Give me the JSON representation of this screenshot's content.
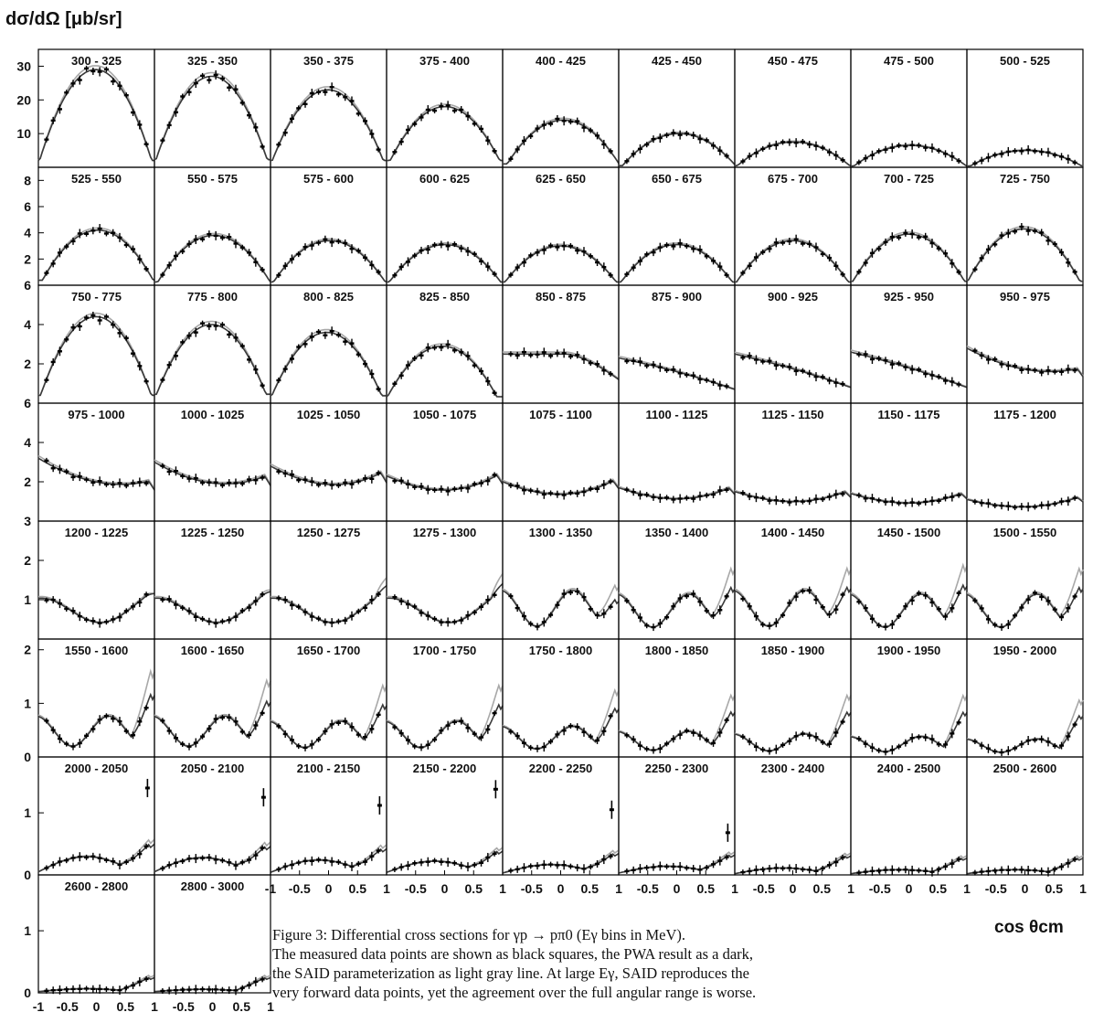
{
  "figure": {
    "ylabel": "dσ/dΩ [μb/sr]",
    "xlabel": "cos θcm",
    "caption": [
      "Figure 3: Differential cross sections for γp → pπ0 (Eγ bins in MeV).",
      "The measured data points are shown as black squares, the PWA result as a dark,",
      "the SAID parameterization as light gray line. At large Eγ, SAID reproduces the",
      "very forward data points, yet the agreement over the full angular range is worse."
    ]
  },
  "colors": {
    "data": "#000000",
    "pwa": "#3a3a3a",
    "said": "#a8a8a8"
  },
  "chart_data": {
    "type": "scatter",
    "x_ticks": [
      "-1",
      "-0.5",
      "0",
      "0.5",
      "1"
    ],
    "xlim": [
      -1,
      1
    ],
    "rows": [
      {
        "ylim": [
          0,
          35
        ],
        "yticks": [
          10,
          20,
          30
        ]
      },
      {
        "ylim": [
          0,
          9
        ],
        "yticks": [
          2,
          4,
          6,
          8
        ]
      },
      {
        "ylim": [
          0,
          6
        ],
        "yticks": [
          2,
          4,
          6
        ]
      },
      {
        "ylim": [
          0,
          6
        ],
        "yticks": [
          2,
          4,
          6
        ]
      },
      {
        "ylim": [
          0,
          3
        ],
        "yticks": [
          1,
          2,
          3
        ]
      },
      {
        "ylim": [
          0,
          2.2
        ],
        "yticks": [
          0,
          1,
          2
        ]
      },
      {
        "ylim": [
          0,
          1.9
        ],
        "yticks": [
          0,
          1
        ]
      },
      {
        "ylim": [
          0,
          1.9
        ],
        "yticks": [
          0,
          1
        ]
      }
    ],
    "panels": [
      {
        "label": "300 - 325",
        "peak": 29,
        "shape": "dome",
        "edge": [
          12,
          8
        ]
      },
      {
        "label": "325 - 350",
        "peak": 27,
        "shape": "dome",
        "edge": [
          13,
          9
        ]
      },
      {
        "label": "350 - 375",
        "peak": 23,
        "shape": "dome",
        "edge": [
          11,
          8
        ]
      },
      {
        "label": "375 - 400",
        "peak": 18,
        "shape": "dome",
        "edge": [
          8,
          9
        ]
      },
      {
        "label": "400 - 425",
        "peak": 14,
        "shape": "dome",
        "edge": [
          4,
          10
        ]
      },
      {
        "label": "425 - 450",
        "peak": 10,
        "shape": "dome",
        "edge": [
          2,
          6
        ]
      },
      {
        "label": "450 - 475",
        "peak": 7.5,
        "shape": "dome",
        "edge": [
          2,
          3
        ]
      },
      {
        "label": "475 - 500",
        "peak": 6.5,
        "shape": "dome",
        "edge": [
          1.5,
          3
        ]
      },
      {
        "label": "500 - 525",
        "peak": 5,
        "shape": "dome",
        "edge": [
          1.5,
          2.5
        ]
      },
      {
        "label": "525 - 550",
        "peak": 4.2,
        "shape": "dome",
        "edge": [
          1.5,
          2.5
        ]
      },
      {
        "label": "550 - 575",
        "peak": 3.8,
        "shape": "dome",
        "edge": [
          1,
          2
        ]
      },
      {
        "label": "575 - 600",
        "peak": 3.4,
        "shape": "dome",
        "edge": [
          1,
          1.5
        ]
      },
      {
        "label": "600 - 625",
        "peak": 3.1,
        "shape": "dome",
        "edge": [
          1,
          1.2
        ]
      },
      {
        "label": "625 - 650",
        "peak": 3,
        "shape": "dome",
        "edge": [
          1,
          1
        ]
      },
      {
        "label": "650 - 675",
        "peak": 3.1,
        "shape": "dome",
        "edge": [
          1,
          1
        ]
      },
      {
        "label": "675 - 700",
        "peak": 3.4,
        "shape": "dome",
        "edge": [
          1.2,
          1
        ]
      },
      {
        "label": "700 - 725",
        "peak": 3.9,
        "shape": "dome",
        "edge": [
          1.3,
          1.2
        ]
      },
      {
        "label": "725 - 750",
        "peak": 4.3,
        "shape": "dome",
        "edge": [
          2,
          1.2
        ]
      },
      {
        "label": "750 - 775",
        "peak": 4.4,
        "shape": "dome",
        "edge": [
          2,
          1.6
        ]
      },
      {
        "label": "775 - 800",
        "peak": 4,
        "shape": "dome",
        "edge": [
          2.6,
          1.8
        ]
      },
      {
        "label": "800 - 825",
        "peak": 3.6,
        "shape": "dome",
        "edge": [
          2.6,
          1.5
        ]
      },
      {
        "label": "825 - 850",
        "peak": 2.9,
        "shape": "dome",
        "edge": [
          2.5,
          1.3
        ]
      },
      {
        "label": "850 - 875",
        "peak": 2.5,
        "shape": "flat",
        "edge": [
          2.4,
          1.2
        ]
      },
      {
        "label": "875 - 900",
        "peak": 2.3,
        "shape": "decline",
        "edge": [
          2.3,
          0.7
        ]
      },
      {
        "label": "900 - 925",
        "peak": 2.4,
        "shape": "decline",
        "edge": [
          2.5,
          0.8
        ]
      },
      {
        "label": "925 - 950",
        "peak": 2.5,
        "shape": "decline",
        "edge": [
          2.6,
          0.8
        ]
      },
      {
        "label": "950 - 975",
        "peak": 2.8,
        "shape": "dip",
        "edge": [
          2.8,
          1.8
        ]
      },
      {
        "label": "975 - 1000",
        "peak": 3.2,
        "shape": "dip",
        "edge": [
          3.2,
          2.1
        ]
      },
      {
        "label": "1000 - 1025",
        "peak": 3,
        "shape": "dip",
        "edge": [
          3,
          2.4
        ]
      },
      {
        "label": "1025 - 1050",
        "peak": 2.8,
        "shape": "dip",
        "edge": [
          2.8,
          2.6
        ]
      },
      {
        "label": "1050 - 1075",
        "peak": 2.3,
        "shape": "dip",
        "edge": [
          2.3,
          2.5
        ]
      },
      {
        "label": "1075 - 1100",
        "peak": 2,
        "shape": "dip",
        "edge": [
          2,
          2.2
        ]
      },
      {
        "label": "1100 - 1125",
        "peak": 1.7,
        "shape": "dip",
        "edge": [
          1.7,
          1.8
        ]
      },
      {
        "label": "1125 - 1150",
        "peak": 1.5,
        "shape": "dip",
        "edge": [
          1.5,
          1.6
        ]
      },
      {
        "label": "1150 - 1175",
        "peak": 1.4,
        "shape": "dip",
        "edge": [
          1.4,
          1.5
        ]
      },
      {
        "label": "1175 - 1200",
        "peak": 1.1,
        "shape": "dip",
        "edge": [
          1.1,
          1.3
        ]
      },
      {
        "label": "1200 - 1225",
        "peak": 1.2,
        "shape": "wave",
        "edge": [
          1.2,
          1.1
        ]
      },
      {
        "label": "1225 - 1250",
        "peak": 1.2,
        "shape": "wave",
        "edge": [
          1.2,
          1.2
        ]
      },
      {
        "label": "1250 - 1275",
        "peak": 1.2,
        "shape": "wave",
        "edge": [
          1.2,
          1.5
        ]
      },
      {
        "label": "1275 - 1300",
        "peak": 1.2,
        "shape": "wave",
        "edge": [
          1.2,
          1.6
        ]
      },
      {
        "label": "1300 - 1350",
        "peak": 1.3,
        "shape": "wave2",
        "edge": [
          1.3,
          1.5
        ]
      },
      {
        "label": "1350 - 1400",
        "peak": 1.2,
        "shape": "wave2",
        "edge": [
          1.2,
          2
        ]
      },
      {
        "label": "1400 - 1450",
        "peak": 1.3,
        "shape": "wave2",
        "edge": [
          1.3,
          2
        ]
      },
      {
        "label": "1450 - 1500",
        "peak": 1.2,
        "shape": "wave2",
        "edge": [
          1.2,
          2.1
        ]
      },
      {
        "label": "1500 - 1550",
        "peak": 1.2,
        "shape": "wave2",
        "edge": [
          1.2,
          2
        ]
      },
      {
        "label": "1550 - 1600",
        "peak": 0.8,
        "shape": "wave2",
        "edge": [
          0.8,
          1.8
        ]
      },
      {
        "label": "1600 - 1650",
        "peak": 0.8,
        "shape": "wave2",
        "edge": [
          0.6,
          1.6
        ]
      },
      {
        "label": "1650 - 1700",
        "peak": 0.7,
        "shape": "wave2",
        "edge": [
          0.5,
          1.5
        ]
      },
      {
        "label": "1700 - 1750",
        "peak": 0.7,
        "shape": "wave2",
        "edge": [
          0.4,
          1.5
        ]
      },
      {
        "label": "1750 - 1800",
        "peak": 0.6,
        "shape": "wave2",
        "edge": [
          0.3,
          1.4
        ]
      },
      {
        "label": "1800 - 1850",
        "peak": 0.5,
        "shape": "wave2",
        "edge": [
          0.3,
          1.3
        ]
      },
      {
        "label": "1850 - 1900",
        "peak": 0.45,
        "shape": "wave2",
        "edge": [
          0.2,
          1.3
        ]
      },
      {
        "label": "1900 - 1950",
        "peak": 0.4,
        "shape": "wave2",
        "edge": [
          0.15,
          1.3
        ]
      },
      {
        "label": "1950 - 2000",
        "peak": 0.35,
        "shape": "wave2",
        "edge": [
          0.1,
          1.2
        ]
      },
      {
        "label": "2000 - 2050",
        "peak": 0.27,
        "shape": "fwd",
        "edge": [
          0.05,
          0.65
        ],
        "fwd": 1.4
      },
      {
        "label": "2050 - 2100",
        "peak": 0.25,
        "shape": "fwd",
        "edge": [
          0.05,
          0.6
        ],
        "fwd": 1.25
      },
      {
        "label": "2100 - 2150",
        "peak": 0.22,
        "shape": "fwd",
        "edge": [
          0.04,
          0.55
        ],
        "fwd": 1.12
      },
      {
        "label": "2150 - 2200",
        "peak": 0.2,
        "shape": "fwd",
        "edge": [
          0.04,
          0.5
        ],
        "fwd": 1.38
      },
      {
        "label": "2200 - 2250",
        "peak": 0.15,
        "shape": "fwd",
        "edge": [
          0.03,
          0.45
        ],
        "fwd": 1.05
      },
      {
        "label": "2250 - 2300",
        "peak": 0.12,
        "shape": "fwd",
        "edge": [
          0.03,
          0.42
        ],
        "fwd": 0.68
      },
      {
        "label": "2300 - 2400",
        "peak": 0.1,
        "shape": "fwd",
        "edge": [
          0.02,
          0.4
        ]
      },
      {
        "label": "2400 - 2500",
        "peak": 0.07,
        "shape": "fwd",
        "edge": [
          0.02,
          0.35
        ]
      },
      {
        "label": "2500 - 2600",
        "peak": 0.07,
        "shape": "fwd",
        "edge": [
          0.02,
          0.35
        ]
      },
      {
        "label": "2600 - 2800",
        "peak": 0.05,
        "shape": "fwd",
        "edge": [
          0.02,
          0.32
        ]
      },
      {
        "label": "2800 - 3000",
        "peak": 0.04,
        "shape": "fwd",
        "edge": [
          0.02,
          0.32
        ]
      }
    ]
  }
}
